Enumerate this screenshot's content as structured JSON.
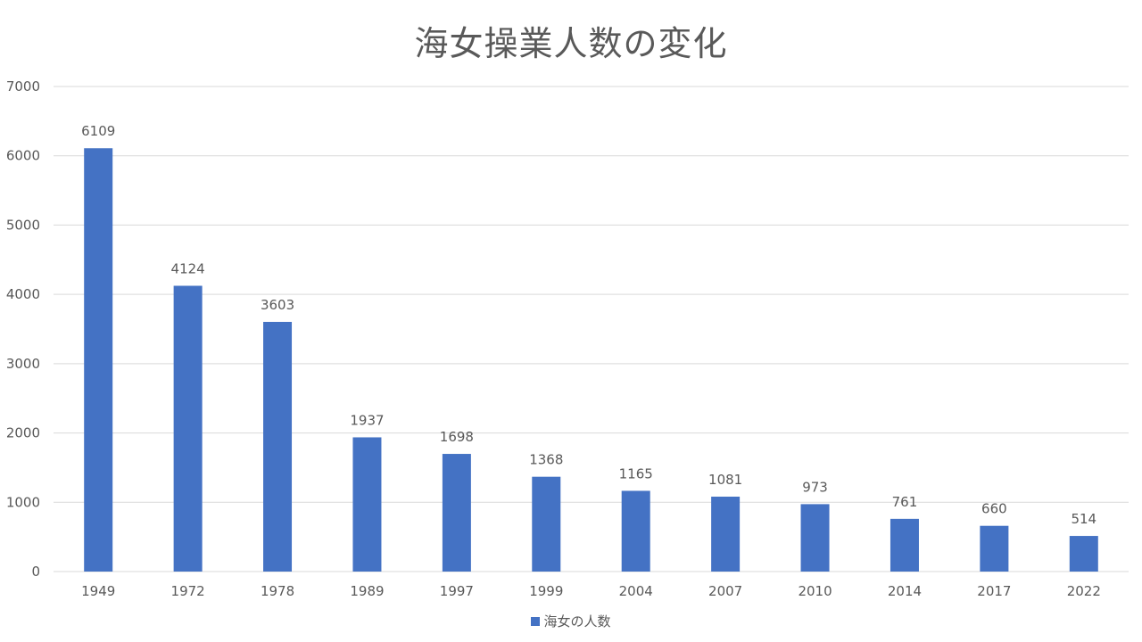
{
  "chart_data": {
    "type": "bar",
    "title": "海女操業人数の変化",
    "categories": [
      "1949",
      "1972",
      "1978",
      "1989",
      "1997",
      "1999",
      "2004",
      "2007",
      "2010",
      "2014",
      "2017",
      "2022"
    ],
    "series": [
      {
        "name": "海女の人数",
        "values": [
          6109,
          4124,
          3603,
          1937,
          1698,
          1368,
          1165,
          1081,
          973,
          761,
          660,
          514
        ],
        "color": "#4472c4"
      }
    ],
    "ylim": [
      0,
      7000
    ],
    "yticks": [
      0,
      1000,
      2000,
      3000,
      4000,
      5000,
      6000,
      7000
    ],
    "grid": true,
    "data_labels": true,
    "legend": "bottom"
  }
}
